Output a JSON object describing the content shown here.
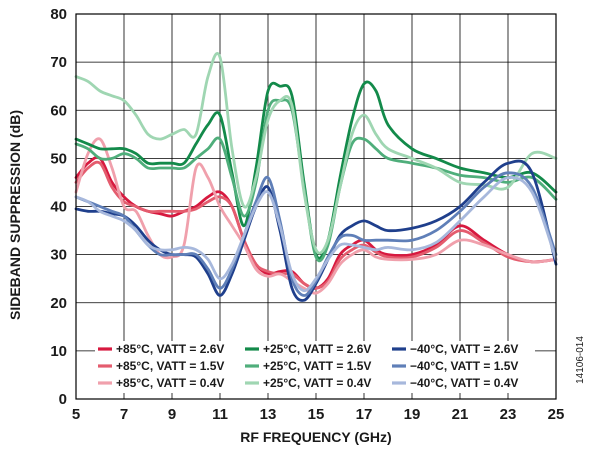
{
  "figure_id": "14106-014",
  "chart_data": {
    "type": "line",
    "title": "",
    "xlabel": "RF FREQUENCY (GHz)",
    "ylabel": "SIDEBAND SUPPRESSION (dB)",
    "xlim": [
      5,
      25
    ],
    "ylim": [
      0,
      80
    ],
    "xticks": [
      "5",
      "7",
      "9",
      "11",
      "13",
      "15",
      "17",
      "19",
      "21",
      "23",
      "25"
    ],
    "yticks": [
      "0",
      "10",
      "20",
      "30",
      "40",
      "50",
      "60",
      "70",
      "80"
    ],
    "grid": true,
    "legend_position": "bottom-inside",
    "series": [
      {
        "name": "+85°C, VATT = 2.6V",
        "color": "#d7193f",
        "x": [
          5,
          5.5,
          6,
          6.5,
          7,
          7.5,
          8,
          8.5,
          9,
          9.5,
          10,
          10.5,
          11,
          11.5,
          12,
          12.5,
          13,
          13.5,
          14,
          14.5,
          15,
          15.5,
          16,
          16.5,
          17,
          17.5,
          18,
          19,
          20,
          21,
          22,
          23,
          24,
          25
        ],
        "y": [
          46,
          49,
          50,
          45,
          42,
          40,
          39,
          38.5,
          38,
          39,
          40,
          42,
          43,
          40,
          33,
          28,
          26,
          26.5,
          26.5,
          24,
          23,
          25,
          30,
          32,
          33,
          31,
          30,
          30,
          32,
          36,
          33,
          30,
          28.5,
          29
        ]
      },
      {
        "name": "+85°C, VATT = 1.5V",
        "color": "#e45c6e",
        "x": [
          5,
          5.5,
          6,
          6.5,
          7,
          7.5,
          8,
          8.5,
          9,
          9.5,
          10,
          10.5,
          11,
          11.5,
          12,
          12.5,
          13,
          13.5,
          14,
          14.5,
          15,
          15.5,
          16,
          16.5,
          17,
          17.5,
          18,
          19,
          20,
          21,
          22,
          23,
          24,
          25
        ],
        "y": [
          45,
          48,
          49,
          44,
          41,
          40,
          39,
          39,
          39,
          39,
          39.5,
          41,
          42,
          40,
          33,
          28,
          26.5,
          26,
          26,
          24,
          23,
          24.5,
          29,
          31,
          32,
          30.5,
          29.5,
          29.5,
          31.5,
          35,
          32.5,
          29.5,
          28.5,
          29
        ]
      },
      {
        "name": "+85°C, VATT = 0.4V",
        "color": "#f0a0ac",
        "x": [
          5,
          5.5,
          6,
          6.5,
          7,
          7.5,
          8,
          8.5,
          9,
          9.5,
          10,
          10.5,
          11,
          11.5,
          12,
          12.5,
          13,
          13.5,
          14,
          14.5,
          15,
          15.5,
          16,
          16.5,
          17,
          17.5,
          18,
          19,
          20,
          21,
          22,
          23,
          24,
          25
        ],
        "y": [
          43,
          51,
          54,
          48,
          40,
          39,
          34,
          30,
          29.5,
          32,
          48,
          46,
          40,
          36,
          32,
          27,
          25.5,
          26,
          24.5,
          23,
          22,
          24,
          28,
          30,
          31,
          29.5,
          29,
          29,
          30,
          33,
          32,
          30,
          28.5,
          29
        ]
      },
      {
        "name": "+25°C, VATT = 2.6V",
        "color": "#138a4a",
        "x": [
          5,
          5.5,
          6,
          6.5,
          7,
          7.5,
          8,
          8.5,
          9,
          9.5,
          10,
          10.5,
          11,
          11.5,
          12,
          12.5,
          13,
          13.5,
          14,
          14.5,
          15,
          15.5,
          16,
          16.5,
          17,
          17.5,
          18,
          19,
          20,
          21,
          22,
          23,
          24,
          25
        ],
        "y": [
          54,
          53,
          52,
          52,
          52,
          51,
          49,
          49,
          49,
          49,
          53,
          57,
          59,
          47,
          36,
          48,
          64,
          65,
          63,
          45,
          30,
          33,
          46,
          58,
          65.5,
          64,
          57,
          52,
          50,
          48,
          47,
          46,
          47,
          43
        ]
      },
      {
        "name": "+25°C, VATT = 1.5V",
        "color": "#4fae7b",
        "x": [
          5,
          5.5,
          6,
          6.5,
          7,
          7.5,
          8,
          8.5,
          9,
          9.5,
          10,
          10.5,
          11,
          11.5,
          12,
          12.5,
          13,
          13.5,
          14,
          14.5,
          15,
          15.5,
          16,
          16.5,
          17,
          17.5,
          18,
          19,
          20,
          21,
          22,
          23,
          24,
          25
        ],
        "y": [
          53,
          52,
          50,
          50,
          51,
          50,
          48,
          48,
          48,
          48,
          50,
          52,
          54,
          46,
          38,
          45,
          60,
          62,
          60,
          44,
          29.5,
          32,
          44,
          53,
          54,
          52,
          50,
          49,
          48,
          46.5,
          46,
          45,
          46,
          41.5
        ]
      },
      {
        "name": "+25°C, VATT = 0.4V",
        "color": "#9fd6b2",
        "x": [
          5,
          5.5,
          6,
          6.5,
          7,
          7.5,
          8,
          8.5,
          9,
          9.5,
          10,
          10.5,
          11,
          11.5,
          12,
          12.5,
          13,
          13.5,
          14,
          14.5,
          15,
          15.5,
          16,
          16.5,
          17,
          17.5,
          18,
          19,
          20,
          21,
          22,
          23,
          24,
          25
        ],
        "y": [
          67,
          66,
          64,
          63,
          62,
          59,
          55,
          54,
          55,
          56,
          55,
          67,
          71,
          52,
          40,
          46,
          58,
          62,
          61,
          43,
          31,
          33,
          44,
          55,
          59,
          55,
          52,
          50,
          48,
          45,
          44.5,
          44,
          51,
          50
        ]
      },
      {
        "name": "−40°C, VATT = 2.6V",
        "color": "#1f3f8c",
        "x": [
          5,
          5.5,
          6,
          6.5,
          7,
          7.5,
          8,
          8.5,
          9,
          9.5,
          10,
          10.5,
          11,
          11.5,
          12,
          12.5,
          13,
          13.5,
          14,
          14.5,
          15,
          15.5,
          16,
          16.5,
          17,
          17.5,
          18,
          19,
          20,
          21,
          22,
          23,
          24,
          25
        ],
        "y": [
          39.5,
          39,
          39,
          38.5,
          38,
          36,
          33,
          31,
          30,
          30,
          29.5,
          26,
          21.5,
          26,
          33,
          40,
          44,
          35,
          23,
          20.5,
          24,
          29,
          34,
          36,
          37,
          36,
          35,
          35.5,
          37,
          40,
          45,
          49,
          47,
          28
        ]
      },
      {
        "name": "−40°C, VATT = 1.5V",
        "color": "#5f7fb8",
        "x": [
          5,
          5.5,
          6,
          6.5,
          7,
          7.5,
          8,
          8.5,
          9,
          9.5,
          10,
          10.5,
          11,
          11.5,
          12,
          12.5,
          13,
          13.5,
          14,
          14.5,
          15,
          15.5,
          16,
          16.5,
          17,
          17.5,
          18,
          19,
          20,
          21,
          22,
          23,
          24,
          25
        ],
        "y": [
          42,
          41,
          40,
          39,
          38,
          35,
          32,
          30,
          30,
          30,
          30,
          27,
          23,
          27,
          34,
          41,
          46,
          37,
          25,
          21.5,
          24.5,
          29.5,
          33.5,
          34,
          33,
          33,
          33,
          33,
          35,
          39,
          44,
          47,
          44,
          30
        ]
      },
      {
        "name": "−40°C, VATT = 0.4V",
        "color": "#a7b8dc",
        "x": [
          5,
          5.5,
          6,
          6.5,
          7,
          7.5,
          8,
          8.5,
          9,
          9.5,
          10,
          10.5,
          11,
          11.5,
          12,
          12.5,
          13,
          13.5,
          14,
          14.5,
          15,
          15.5,
          16,
          16.5,
          17,
          17.5,
          18,
          19,
          20,
          21,
          22,
          23,
          24,
          25
        ],
        "y": [
          42,
          41,
          39,
          38,
          37,
          35,
          32,
          31,
          31,
          31.5,
          31,
          29,
          25,
          28,
          34,
          40,
          43,
          36,
          26,
          22.5,
          25,
          29,
          32,
          32,
          31.5,
          31,
          31.5,
          31,
          32.5,
          37,
          42,
          46,
          43,
          29
        ]
      }
    ]
  }
}
